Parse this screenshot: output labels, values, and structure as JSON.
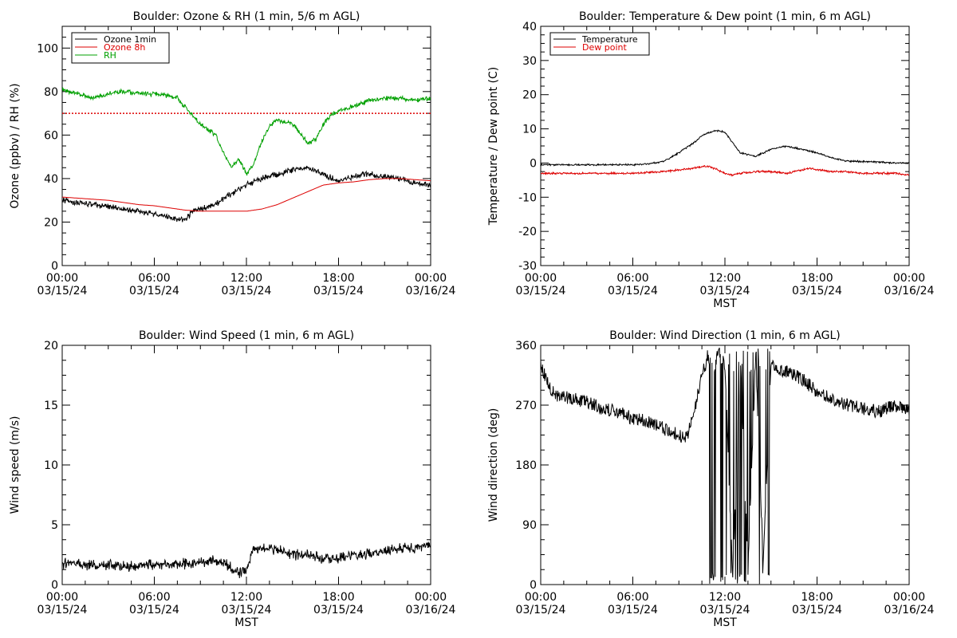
{
  "chart_data": [
    {
      "type": "line",
      "title": "Boulder: Ozone & RH (1 min, 5/6 m AGL)",
      "ylabel": "Ozone (ppbv) / RH (%)",
      "xlabel": "",
      "xlim": [
        0,
        24
      ],
      "ylim": [
        0,
        110
      ],
      "yticks": [
        0,
        20,
        40,
        60,
        80,
        100
      ],
      "xticks": [
        {
          "hour": 0,
          "time": "00:00",
          "date": "03/15/24"
        },
        {
          "hour": 6,
          "time": "06:00",
          "date": "03/15/24"
        },
        {
          "hour": 12,
          "time": "12:00",
          "date": "03/15/24"
        },
        {
          "hour": 18,
          "time": "18:00",
          "date": "03/15/24"
        },
        {
          "hour": 24,
          "time": "00:00",
          "date": "03/16/24"
        }
      ],
      "legend": {
        "position": "top-left",
        "entries": [
          {
            "name": "Ozone 1min",
            "color": "#000000"
          },
          {
            "name": "Ozone 8h",
            "color": "#dd0000"
          },
          {
            "name": "RH",
            "color": "#00a000"
          }
        ]
      },
      "hlines": [
        {
          "y": 70,
          "color": "#dd0000",
          "style": "dotted"
        }
      ],
      "series": [
        {
          "name": "Ozone 1min",
          "color": "#000000",
          "noise": 1.6,
          "x": [
            0,
            1,
            2,
            3,
            4,
            5,
            6,
            7,
            8,
            8.5,
            9,
            10,
            11,
            12,
            13,
            14,
            15,
            16,
            17,
            18,
            19,
            20,
            21,
            22,
            23,
            24
          ],
          "y": [
            30,
            29,
            28,
            27,
            26,
            25,
            24,
            22,
            21,
            25,
            26,
            28,
            33,
            37,
            40,
            42,
            44,
            45,
            42,
            39,
            41,
            42,
            41,
            40,
            38,
            37
          ]
        },
        {
          "name": "Ozone 8h",
          "color": "#dd0000",
          "noise": 0,
          "x": [
            0,
            1,
            2,
            3,
            4,
            5,
            6,
            7,
            8,
            9,
            10,
            11,
            12,
            13,
            14,
            15,
            16,
            17,
            18,
            19,
            20,
            21,
            22,
            23,
            24
          ],
          "y": [
            31.5,
            31,
            30.5,
            30,
            29,
            28,
            27.5,
            26.5,
            25.5,
            25,
            25,
            25,
            25,
            26,
            28,
            31,
            34,
            37,
            38,
            38.5,
            39.5,
            40,
            40,
            39.5,
            39
          ]
        },
        {
          "name": "RH",
          "color": "#00a000",
          "noise": 1.3,
          "x": [
            0,
            1,
            2,
            3,
            4,
            5,
            6,
            7,
            7.5,
            8,
            9,
            10,
            10.5,
            11,
            11.5,
            12,
            12.5,
            13,
            13.5,
            14,
            15,
            15.5,
            16,
            16.5,
            17,
            17.5,
            18,
            19,
            20,
            21,
            22,
            23,
            24
          ],
          "y": [
            81,
            79,
            77,
            79,
            80,
            79,
            79,
            78,
            77,
            73,
            65,
            60,
            52,
            45,
            49,
            42,
            47,
            57,
            64,
            67,
            65,
            61,
            56,
            58,
            65,
            69,
            71,
            73,
            76,
            77,
            77,
            76,
            77
          ]
        }
      ]
    },
    {
      "type": "line",
      "title": "Boulder: Temperature & Dew point (1 min, 6 m AGL)",
      "ylabel": "Temperature / Dew point (C)",
      "xlabel": "MST",
      "xlim": [
        0,
        24
      ],
      "ylim": [
        -30,
        40
      ],
      "yticks": [
        -30,
        -20,
        -10,
        0,
        10,
        20,
        30,
        40
      ],
      "xticks": [
        {
          "hour": 0,
          "time": "00:00",
          "date": "03/15/24"
        },
        {
          "hour": 6,
          "time": "06:00",
          "date": "03/15/24"
        },
        {
          "hour": 12,
          "time": "12:00",
          "date": "03/15/24"
        },
        {
          "hour": 18,
          "time": "18:00",
          "date": "03/15/24"
        },
        {
          "hour": 24,
          "time": "00:00",
          "date": "03/16/24"
        }
      ],
      "legend": {
        "position": "top-left",
        "entries": [
          {
            "name": "Temperature",
            "color": "#000000"
          },
          {
            "name": "Dew point",
            "color": "#dd0000"
          }
        ]
      },
      "hlines": [],
      "series": [
        {
          "name": "Temperature",
          "color": "#000000",
          "noise": 0.3,
          "x": [
            0,
            2,
            4,
            6,
            7,
            8,
            9,
            10,
            10.5,
            11,
            11.5,
            12,
            12.5,
            13,
            14,
            15,
            16,
            17,
            18,
            19,
            20,
            21,
            22,
            23,
            24
          ],
          "y": [
            -0.5,
            -0.5,
            -0.5,
            -0.5,
            -0.3,
            0.5,
            3,
            6,
            8,
            9,
            9.5,
            9,
            6,
            3,
            2,
            4,
            5,
            4,
            3,
            1.5,
            0.5,
            0.5,
            0.3,
            0,
            0
          ]
        },
        {
          "name": "Dew point",
          "color": "#dd0000",
          "noise": 0.35,
          "x": [
            0,
            2,
            4,
            6,
            8,
            9,
            10,
            10.5,
            11,
            11.5,
            12,
            12.5,
            13,
            14,
            15,
            16,
            16.5,
            17,
            17.5,
            18,
            19,
            20,
            21,
            22,
            23,
            24
          ],
          "y": [
            -3,
            -3,
            -3,
            -3,
            -2.5,
            -2,
            -1.5,
            -1,
            -1,
            -2,
            -3,
            -3.5,
            -3,
            -2.5,
            -2.5,
            -3,
            -2.5,
            -2,
            -1.5,
            -2,
            -2.5,
            -2.5,
            -3,
            -3,
            -3,
            -3.5
          ]
        }
      ]
    },
    {
      "type": "line",
      "title": "Boulder: Wind Speed (1 min, 6 m AGL)",
      "ylabel": "Wind speed (m/s)",
      "xlabel": "MST",
      "xlim": [
        0,
        24
      ],
      "ylim": [
        0,
        20
      ],
      "yticks": [
        0,
        5,
        10,
        15,
        20
      ],
      "xticks": [
        {
          "hour": 0,
          "time": "00:00",
          "date": "03/15/24"
        },
        {
          "hour": 6,
          "time": "06:00",
          "date": "03/15/24"
        },
        {
          "hour": 12,
          "time": "12:00",
          "date": "03/15/24"
        },
        {
          "hour": 18,
          "time": "18:00",
          "date": "03/15/24"
        },
        {
          "hour": 24,
          "time": "00:00",
          "date": "03/16/24"
        }
      ],
      "legend": null,
      "hlines": [],
      "series": [
        {
          "name": "",
          "color": "#000000",
          "noise": 0.55,
          "x": [
            0,
            2,
            4,
            6,
            8,
            9,
            10,
            11,
            11.5,
            12,
            12.5,
            13,
            14,
            15,
            16,
            17,
            18,
            19,
            20,
            21,
            22,
            23,
            24
          ],
          "y": [
            1.8,
            1.6,
            1.5,
            1.7,
            1.7,
            1.8,
            2,
            1.5,
            1,
            1.2,
            3,
            3,
            3,
            2.5,
            2.5,
            2.2,
            2.2,
            2.5,
            2.5,
            2.8,
            3,
            3,
            3.3
          ]
        }
      ]
    },
    {
      "type": "line",
      "title": "Boulder: Wind Direction (1 min, 6 m AGL)",
      "ylabel": "Wind direction (deg)",
      "xlabel": "MST",
      "xlim": [
        0,
        24
      ],
      "ylim": [
        0,
        360
      ],
      "yticks": [
        0,
        90,
        180,
        270,
        360
      ],
      "xticks": [
        {
          "hour": 0,
          "time": "00:00",
          "date": "03/15/24"
        },
        {
          "hour": 6,
          "time": "06:00",
          "date": "03/15/24"
        },
        {
          "hour": 12,
          "time": "12:00",
          "date": "03/15/24"
        },
        {
          "hour": 18,
          "time": "18:00",
          "date": "03/15/24"
        },
        {
          "hour": 24,
          "time": "00:00",
          "date": "03/16/24"
        }
      ],
      "legend": null,
      "hlines": [],
      "series": [
        {
          "name": "",
          "color": "#000000",
          "noise": 10,
          "x": [
            0,
            0.5,
            1,
            2,
            3,
            4,
            5,
            6,
            7,
            8,
            9,
            9.5,
            10,
            10.5,
            11,
            11.5,
            12,
            12.5,
            13,
            13.5,
            14,
            14.5,
            15,
            16,
            17,
            18,
            19,
            20,
            21,
            22,
            23,
            24
          ],
          "y": [
            330,
            300,
            285,
            280,
            275,
            265,
            260,
            250,
            245,
            235,
            225,
            220,
            260,
            320,
            340,
            350,
            330,
            10,
            340,
            20,
            345,
            30,
            330,
            320,
            310,
            290,
            280,
            270,
            265,
            260,
            270,
            260
          ]
        }
      ]
    }
  ]
}
